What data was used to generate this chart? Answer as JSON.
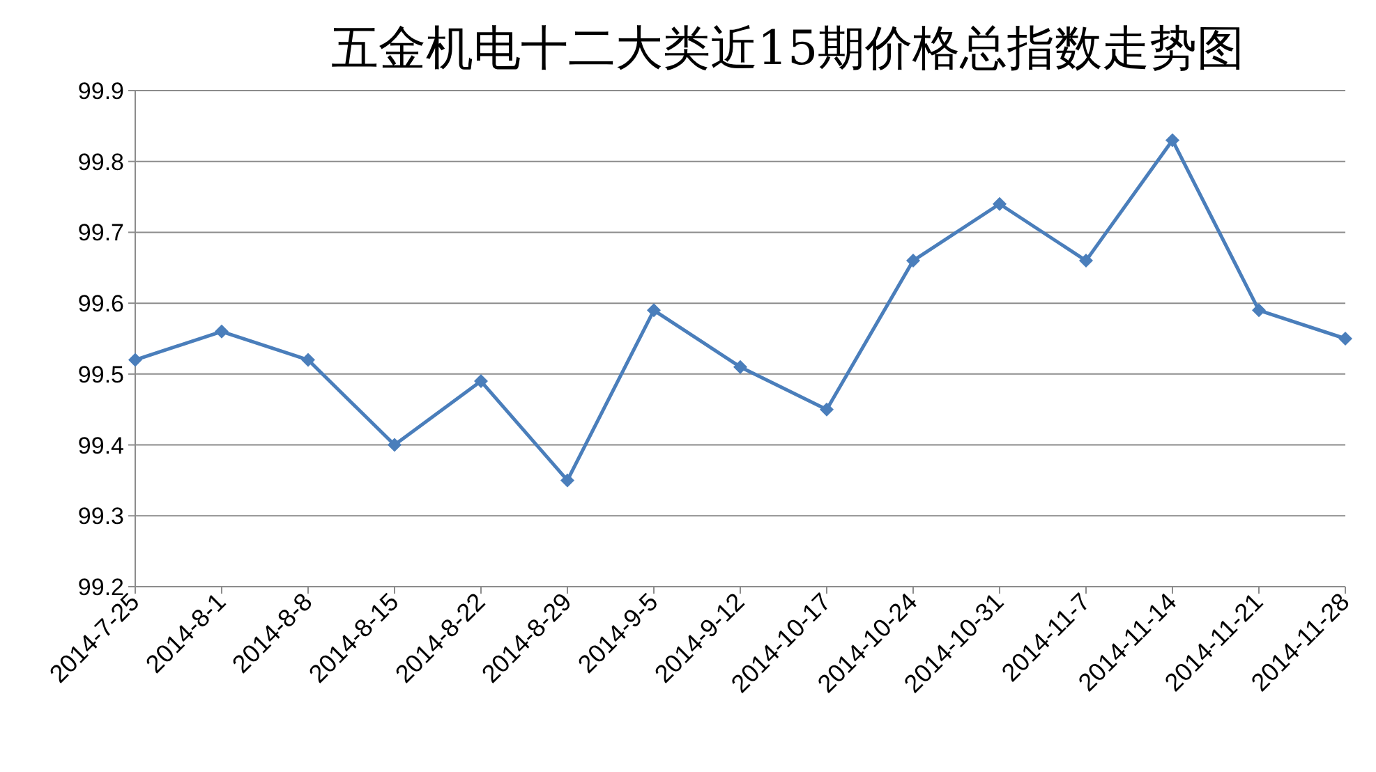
{
  "chart_data": {
    "type": "line",
    "title": "五金机电十二大类近15期价格总指数走势图",
    "categories": [
      "2014-7-25",
      "2014-8-1",
      "2014-8-8",
      "2014-8-15",
      "2014-8-22",
      "2014-8-29",
      "2014-9-5",
      "2014-9-12",
      "2014-10-17",
      "2014-10-24",
      "2014-10-31",
      "2014-11-7",
      "2014-11-14",
      "2014-11-21",
      "2014-11-28"
    ],
    "series": [
      {
        "color": "#4a7ebb",
        "values": [
          99.52,
          99.56,
          99.52,
          99.4,
          99.49,
          99.35,
          99.59,
          99.51,
          99.45,
          99.66,
          99.74,
          99.66,
          99.83,
          99.59,
          99.55
        ]
      }
    ],
    "ylim": [
      99.2,
      99.9
    ],
    "yticks": [
      99.2,
      99.3,
      99.4,
      99.5,
      99.6,
      99.7,
      99.8,
      99.9
    ],
    "grid": "y",
    "marker": "diamond",
    "line_style": "solid"
  }
}
